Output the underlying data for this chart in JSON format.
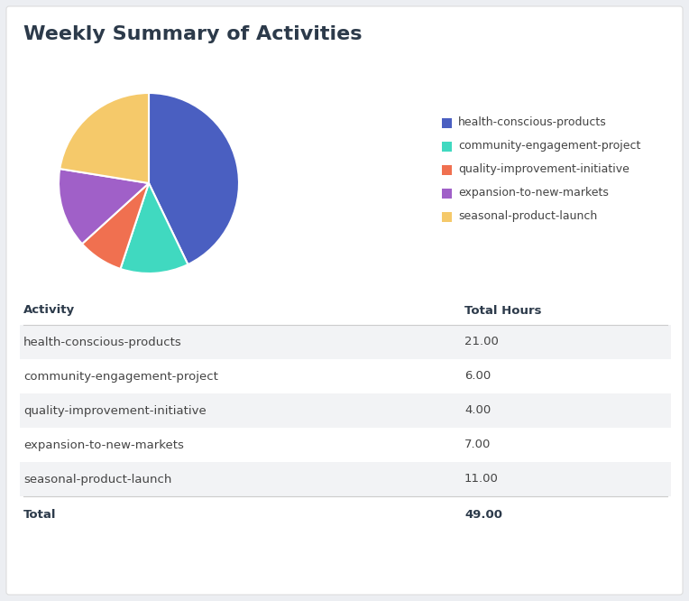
{
  "title": "Weekly Summary of Activities",
  "activities": [
    "health-conscious-products",
    "community-engagement-project",
    "quality-improvement-initiative",
    "expansion-to-new-markets",
    "seasonal-product-launch"
  ],
  "hours": [
    21.0,
    6.0,
    4.0,
    7.0,
    11.0
  ],
  "total": 49.0,
  "colors": [
    "#4A5FC1",
    "#40D9C0",
    "#F07050",
    "#A060C8",
    "#F5C96A"
  ],
  "background_color": "#ECEEF2",
  "card_color": "#FFFFFF",
  "title_color": "#2C3A4A",
  "table_header_color": "#2C3A4A",
  "table_row_alt_color": "#F2F3F5",
  "table_row_color": "#FFFFFF",
  "divider_color": "#CCCCCC",
  "text_color": "#444444",
  "title_fontsize": 16,
  "legend_fontsize": 9,
  "table_fontsize": 9.5
}
